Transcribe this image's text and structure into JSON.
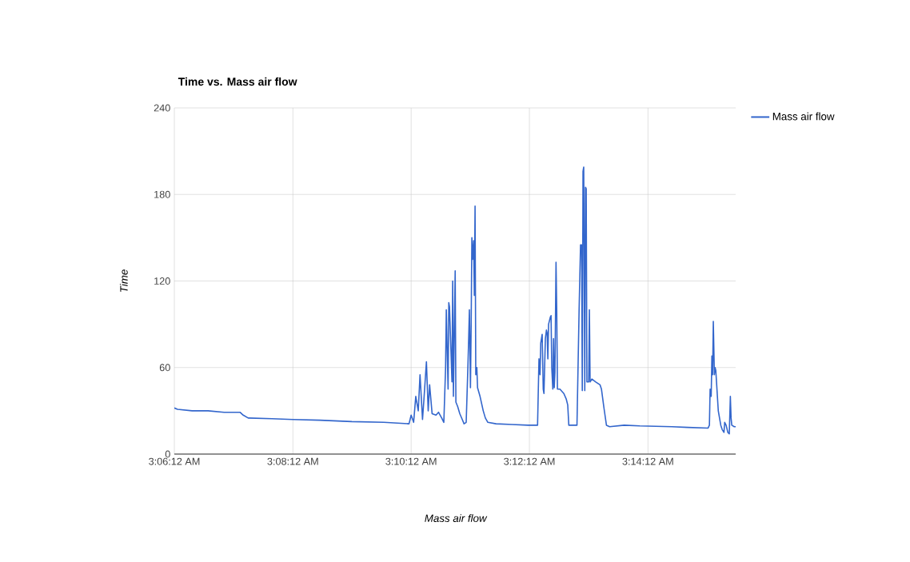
{
  "chart_data": {
    "type": "line",
    "title": "Time vs. Mass air flow",
    "xlabel": "Mass air flow",
    "ylabel": "Time",
    "x": [
      3.1033,
      3.1042,
      3.1083,
      3.1128,
      3.1173,
      3.1218,
      3.1227,
      3.1241,
      3.1308,
      3.1367,
      3.1443,
      3.1533,
      3.1623,
      3.1694,
      3.17,
      3.1707,
      3.1713,
      3.172,
      3.1725,
      3.1732,
      3.1736,
      3.1743,
      3.1748,
      3.1752,
      3.1759,
      3.177,
      3.1777,
      3.1786,
      3.1792,
      3.1797,
      3.1799,
      3.1804,
      3.1806,
      3.1808,
      3.1815,
      3.1817,
      3.1819,
      3.1824,
      3.1826,
      3.1831,
      3.1837,
      3.1844,
      3.1849,
      3.1855,
      3.186,
      3.1862,
      3.1864,
      3.1867,
      3.1869,
      3.1871,
      3.1873,
      3.1876,
      3.1878,
      3.188,
      3.1882,
      3.1885,
      3.1887,
      3.1894,
      3.1903,
      3.1909,
      3.1916,
      3.1939,
      3.1984,
      3.2029,
      3.2056,
      3.206,
      3.2063,
      3.2065,
      3.2069,
      3.2072,
      3.2074,
      3.2078,
      3.2081,
      3.2083,
      3.2085,
      3.2087,
      3.2092,
      3.2094,
      3.2096,
      3.2099,
      3.2101,
      3.2103,
      3.2105,
      3.2108,
      3.211,
      3.2112,
      3.2119,
      3.213,
      3.2137,
      3.2141,
      3.2144,
      3.2153,
      3.2167,
      3.2173,
      3.2177,
      3.218,
      3.2182,
      3.2184,
      3.2186,
      3.2189,
      3.2191,
      3.2193,
      3.2195,
      3.22,
      3.2202,
      3.2204,
      3.2209,
      3.222,
      3.2232,
      3.2236,
      3.2243,
      3.225,
      3.2259,
      3.23,
      3.2344,
      3.2434,
      3.2479,
      3.2536,
      3.254,
      3.2542,
      3.2545,
      3.2547,
      3.2549,
      3.2551,
      3.2554,
      3.2556,
      3.2558,
      3.256,
      3.2565,
      3.2572,
      3.2576,
      3.2581,
      3.2583,
      3.2587,
      3.2592,
      3.2596,
      3.2599,
      3.2601,
      3.2603,
      3.261,
      3.2614
    ],
    "series": [
      {
        "name": "Mass air flow",
        "color": "#3366cc",
        "values": [
          32,
          31,
          30,
          30,
          29,
          29,
          27,
          25,
          24.5,
          24,
          23.5,
          22.5,
          22,
          21,
          27,
          22,
          40,
          30,
          55,
          24,
          38,
          64,
          30,
          48,
          28,
          27,
          29,
          25,
          22,
          60,
          100,
          45,
          105,
          102,
          50,
          120,
          40,
          127,
          36,
          33,
          28,
          24,
          21,
          22,
          62,
          80,
          100,
          46,
          90,
          150,
          135,
          148,
          110,
          172,
          55,
          60,
          46,
          40,
          30,
          25,
          22,
          21,
          20.5,
          20,
          20,
          66,
          55,
          77,
          83,
          45,
          42,
          80,
          86,
          84,
          66,
          90,
          95,
          96,
          60,
          45,
          80,
          46,
          57,
          133,
          100,
          45,
          45,
          42,
          38,
          34,
          20,
          20,
          20,
          100,
          145,
          145,
          44,
          196,
          199,
          44,
          185,
          184,
          50,
          50,
          100,
          50,
          52,
          50,
          48,
          45,
          32,
          20,
          19,
          20,
          19.5,
          19,
          18.5,
          18,
          20,
          45,
          40,
          68,
          55,
          92,
          55,
          60,
          58,
          50,
          30,
          20,
          17,
          15,
          22,
          20,
          15,
          14,
          40,
          25,
          20,
          19,
          19
        ]
      }
    ],
    "xlim": [
      3.1033,
      3.2614
    ],
    "xticks": [
      {
        "value": 3.1033,
        "label": "3:06:12 AM"
      },
      {
        "value": 3.1367,
        "label": "3:08:12 AM"
      },
      {
        "value": 3.17,
        "label": "3:10:12 AM"
      },
      {
        "value": 3.2033,
        "label": "3:12:12 AM"
      },
      {
        "value": 3.2367,
        "label": "3:14:12 AM"
      }
    ],
    "ylim": [
      0,
      240
    ],
    "yticks": [
      0,
      60,
      120,
      180,
      240
    ],
    "grid": true,
    "legend": "right",
    "marker": "none",
    "line_style": "solid"
  }
}
